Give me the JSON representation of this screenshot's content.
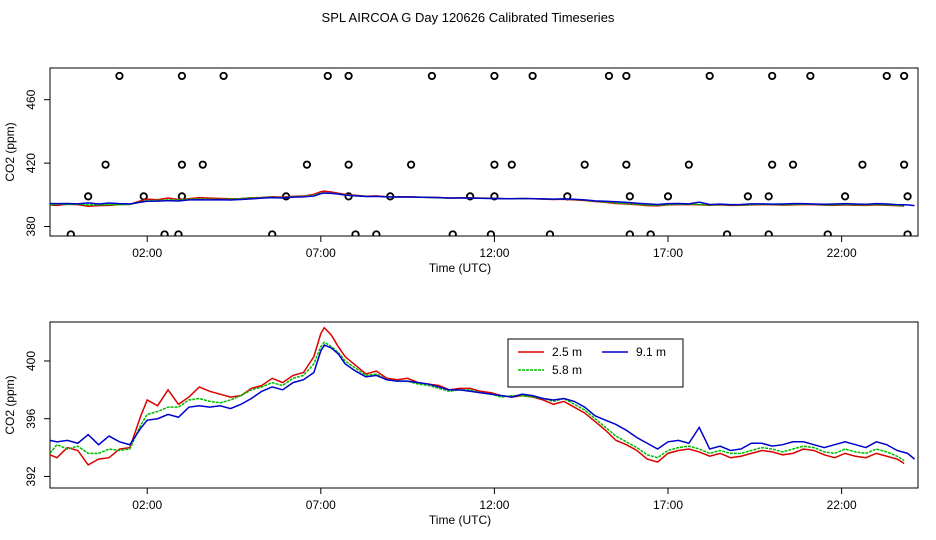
{
  "title": "SPL AIRCOA G  Day 120626  Calibrated Timeseries",
  "chart_data": [
    {
      "type": "scatter+line",
      "xlabel": "Time (UTC)",
      "ylabel": "CO2 (ppm)",
      "xlim": [
        -0.8,
        24.2
      ],
      "ylim": [
        374,
        480
      ],
      "x_ticks": [
        2,
        7,
        12,
        17,
        22
      ],
      "x_tick_labels": [
        "02:00",
        "07:00",
        "12:00",
        "17:00",
        "22:00"
      ],
      "y_ticks": [
        380,
        420,
        460
      ],
      "y_tick_labels": [
        "380",
        "420",
        "460"
      ],
      "calibration_points": [
        {
          "x": 1.2,
          "y": 475
        },
        {
          "x": 3.0,
          "y": 475
        },
        {
          "x": 4.2,
          "y": 475
        },
        {
          "x": 7.2,
          "y": 475
        },
        {
          "x": 7.8,
          "y": 475
        },
        {
          "x": 10.2,
          "y": 475
        },
        {
          "x": 12.0,
          "y": 475
        },
        {
          "x": 13.1,
          "y": 475
        },
        {
          "x": 15.3,
          "y": 475
        },
        {
          "x": 15.8,
          "y": 475
        },
        {
          "x": 18.2,
          "y": 475
        },
        {
          "x": 20.0,
          "y": 475
        },
        {
          "x": 21.1,
          "y": 475
        },
        {
          "x": 23.3,
          "y": 475
        },
        {
          "x": 23.8,
          "y": 475
        },
        {
          "x": 0.8,
          "y": 419
        },
        {
          "x": 3.0,
          "y": 419
        },
        {
          "x": 3.6,
          "y": 419
        },
        {
          "x": 6.6,
          "y": 419
        },
        {
          "x": 7.8,
          "y": 419
        },
        {
          "x": 9.6,
          "y": 419
        },
        {
          "x": 12.0,
          "y": 419
        },
        {
          "x": 12.5,
          "y": 419
        },
        {
          "x": 14.6,
          "y": 419
        },
        {
          "x": 15.8,
          "y": 419
        },
        {
          "x": 17.6,
          "y": 419
        },
        {
          "x": 20.0,
          "y": 419
        },
        {
          "x": 20.6,
          "y": 419
        },
        {
          "x": 22.6,
          "y": 419
        },
        {
          "x": 23.8,
          "y": 419
        },
        {
          "x": 0.3,
          "y": 399
        },
        {
          "x": 1.9,
          "y": 399
        },
        {
          "x": 3.0,
          "y": 399
        },
        {
          "x": 6.0,
          "y": 399
        },
        {
          "x": 7.8,
          "y": 399
        },
        {
          "x": 9.0,
          "y": 399
        },
        {
          "x": 11.3,
          "y": 399
        },
        {
          "x": 12.0,
          "y": 399
        },
        {
          "x": 14.1,
          "y": 399
        },
        {
          "x": 15.9,
          "y": 399
        },
        {
          "x": 17.0,
          "y": 399
        },
        {
          "x": 19.3,
          "y": 399
        },
        {
          "x": 19.9,
          "y": 399
        },
        {
          "x": 22.1,
          "y": 399
        },
        {
          "x": 23.9,
          "y": 399
        },
        {
          "x": -0.2,
          "y": 375
        },
        {
          "x": 2.5,
          "y": 375
        },
        {
          "x": 2.9,
          "y": 375
        },
        {
          "x": 5.6,
          "y": 375
        },
        {
          "x": 8.0,
          "y": 375
        },
        {
          "x": 8.6,
          "y": 375
        },
        {
          "x": 10.8,
          "y": 375
        },
        {
          "x": 11.9,
          "y": 375
        },
        {
          "x": 13.6,
          "y": 375
        },
        {
          "x": 15.9,
          "y": 375
        },
        {
          "x": 16.5,
          "y": 375
        },
        {
          "x": 18.7,
          "y": 375
        },
        {
          "x": 19.9,
          "y": 375
        },
        {
          "x": 21.6,
          "y": 375
        },
        {
          "x": 23.9,
          "y": 375
        }
      ],
      "series": [
        {
          "name": "2.5 m",
          "color": "#dd0000",
          "level_offset": 0.0
        },
        {
          "name": "5.8 m",
          "color": "#00bb00",
          "level_offset": 0.0
        },
        {
          "name": "9.1 m",
          "color": "#0000cc",
          "level_offset": 0.0
        }
      ],
      "grid": false
    },
    {
      "type": "line",
      "xlabel": "Time (UTC)",
      "ylabel": "CO2 (ppm)",
      "xlim": [
        -0.8,
        24.2
      ],
      "ylim": [
        391.2,
        402.7
      ],
      "x_ticks": [
        2,
        7,
        12,
        17,
        22
      ],
      "x_tick_labels": [
        "02:00",
        "07:00",
        "12:00",
        "17:00",
        "22:00"
      ],
      "y_ticks": [
        392,
        396,
        400
      ],
      "y_tick_labels": [
        "392",
        "396",
        "400"
      ],
      "legend": "top-center",
      "grid": false,
      "series": [
        {
          "name": "2.5 m",
          "color": "#dd0000",
          "x": [
            -0.8,
            -0.6,
            -0.3,
            0,
            0.3,
            0.6,
            0.9,
            1.2,
            1.5,
            1.8,
            2.0,
            2.3,
            2.6,
            2.9,
            3.2,
            3.5,
            3.8,
            4.1,
            4.4,
            4.7,
            5.0,
            5.3,
            5.6,
            5.9,
            6.2,
            6.5,
            6.8,
            7.0,
            7.1,
            7.3,
            7.5,
            7.7,
            8.0,
            8.3,
            8.6,
            8.9,
            9.2,
            9.5,
            9.8,
            10.1,
            10.4,
            10.7,
            11.0,
            11.3,
            11.6,
            11.9,
            12.2,
            12.5,
            12.8,
            13.1,
            13.4,
            13.7,
            14.0,
            14.3,
            14.6,
            14.9,
            15.2,
            15.5,
            15.8,
            16.1,
            16.4,
            16.7,
            17.0,
            17.3,
            17.6,
            17.9,
            18.2,
            18.5,
            18.8,
            19.1,
            19.4,
            19.7,
            20.0,
            20.3,
            20.6,
            20.9,
            21.2,
            21.5,
            21.8,
            22.1,
            22.4,
            22.7,
            23.0,
            23.3,
            23.6,
            23.8
          ],
          "y": [
            393.5,
            393.3,
            394.0,
            393.8,
            392.8,
            393.2,
            393.3,
            393.9,
            394.0,
            396.1,
            397.3,
            396.9,
            398.0,
            397.0,
            397.5,
            398.2,
            397.9,
            397.7,
            397.5,
            397.6,
            398.1,
            398.3,
            398.8,
            398.5,
            399.0,
            399.2,
            400.3,
            401.9,
            402.3,
            401.8,
            401.0,
            400.3,
            399.7,
            399.1,
            399.3,
            398.8,
            398.7,
            398.8,
            398.5,
            398.4,
            398.3,
            398.0,
            398.1,
            398.1,
            397.9,
            397.8,
            397.6,
            397.5,
            397.6,
            397.5,
            397.3,
            397.0,
            397.2,
            396.8,
            396.4,
            395.8,
            395.2,
            394.5,
            394.2,
            393.8,
            393.2,
            393.0,
            393.6,
            393.8,
            393.9,
            393.7,
            393.4,
            393.6,
            393.3,
            393.4,
            393.6,
            393.8,
            393.7,
            393.5,
            393.6,
            393.9,
            393.8,
            393.5,
            393.3,
            393.6,
            393.4,
            393.3,
            393.6,
            393.4,
            393.2,
            392.9
          ]
        },
        {
          "name": "5.8 m",
          "color": "#00bb00",
          "x": [
            -0.8,
            -0.6,
            -0.3,
            0,
            0.3,
            0.6,
            0.9,
            1.2,
            1.5,
            1.8,
            2.0,
            2.3,
            2.6,
            2.9,
            3.2,
            3.5,
            3.8,
            4.1,
            4.4,
            4.7,
            5.0,
            5.3,
            5.6,
            5.9,
            6.2,
            6.5,
            6.8,
            7.0,
            7.1,
            7.3,
            7.5,
            7.7,
            8.0,
            8.3,
            8.6,
            8.9,
            9.2,
            9.5,
            9.8,
            10.1,
            10.4,
            10.7,
            11.0,
            11.3,
            11.6,
            11.9,
            12.2,
            12.5,
            12.8,
            13.1,
            13.4,
            13.7,
            14.0,
            14.3,
            14.6,
            14.9,
            15.2,
            15.5,
            15.8,
            16.1,
            16.4,
            16.7,
            17.0,
            17.3,
            17.6,
            17.9,
            18.2,
            18.5,
            18.8,
            19.1,
            19.4,
            19.7,
            20.0,
            20.3,
            20.6,
            20.9,
            21.2,
            21.5,
            21.8,
            22.1,
            22.4,
            22.7,
            23.0,
            23.3,
            23.6,
            23.8
          ],
          "y": [
            393.6,
            394.2,
            393.9,
            394.1,
            393.6,
            393.6,
            393.9,
            393.8,
            393.9,
            395.5,
            396.3,
            396.5,
            396.8,
            396.8,
            397.3,
            397.4,
            397.2,
            397.1,
            397.3,
            397.6,
            398.0,
            398.2,
            398.5,
            398.3,
            398.8,
            399.0,
            399.8,
            401.0,
            401.3,
            401.0,
            400.6,
            400.0,
            399.5,
            399.0,
            399.1,
            398.7,
            398.6,
            398.6,
            398.4,
            398.3,
            398.1,
            397.9,
            398.0,
            398.0,
            397.8,
            397.7,
            397.5,
            397.6,
            397.6,
            397.5,
            397.4,
            397.2,
            397.4,
            397.0,
            396.6,
            396.0,
            395.4,
            394.8,
            394.4,
            394.0,
            393.5,
            393.3,
            393.8,
            394.0,
            394.1,
            393.9,
            393.6,
            393.8,
            393.6,
            393.6,
            393.8,
            394.0,
            393.9,
            393.7,
            393.9,
            394.1,
            394.0,
            393.7,
            393.6,
            393.9,
            393.7,
            393.6,
            393.9,
            393.7,
            393.4,
            393.1
          ]
        },
        {
          "name": "9.1 m",
          "color": "#0000cc",
          "x": [
            -0.8,
            -0.6,
            -0.3,
            0,
            0.3,
            0.6,
            0.9,
            1.2,
            1.5,
            1.8,
            2.0,
            2.3,
            2.6,
            2.9,
            3.2,
            3.5,
            3.8,
            4.1,
            4.4,
            4.7,
            5.0,
            5.3,
            5.6,
            5.9,
            6.2,
            6.5,
            6.8,
            7.0,
            7.1,
            7.3,
            7.5,
            7.7,
            8.0,
            8.3,
            8.6,
            8.9,
            9.2,
            9.5,
            9.8,
            10.1,
            10.4,
            10.7,
            11.0,
            11.3,
            11.6,
            11.9,
            12.2,
            12.5,
            12.8,
            13.1,
            13.4,
            13.7,
            14.0,
            14.3,
            14.6,
            14.9,
            15.2,
            15.5,
            15.8,
            16.1,
            16.4,
            16.7,
            17.0,
            17.3,
            17.6,
            17.9,
            18.2,
            18.5,
            18.8,
            19.1,
            19.4,
            19.7,
            20.0,
            20.3,
            20.6,
            20.9,
            21.2,
            21.5,
            21.8,
            22.1,
            22.4,
            22.7,
            23.0,
            23.3,
            23.6,
            23.9,
            24.1
          ],
          "y": [
            394.5,
            394.4,
            394.5,
            394.3,
            394.9,
            394.2,
            394.8,
            394.4,
            394.2,
            395.3,
            395.9,
            396.0,
            396.3,
            396.1,
            396.8,
            396.9,
            396.8,
            396.9,
            396.7,
            397.0,
            397.4,
            397.9,
            398.2,
            398.0,
            398.5,
            398.7,
            399.2,
            400.7,
            401.1,
            400.9,
            400.5,
            399.8,
            399.3,
            398.9,
            399.0,
            398.7,
            398.6,
            398.6,
            398.5,
            398.4,
            398.2,
            398.0,
            398.0,
            397.9,
            397.8,
            397.7,
            397.6,
            397.5,
            397.7,
            397.6,
            397.4,
            397.3,
            397.4,
            397.2,
            396.8,
            396.2,
            395.9,
            395.6,
            395.2,
            394.7,
            394.3,
            393.9,
            394.4,
            394.5,
            394.3,
            395.4,
            393.9,
            394.1,
            393.8,
            393.9,
            394.3,
            394.3,
            394.1,
            394.2,
            394.4,
            394.4,
            394.2,
            394.0,
            394.2,
            394.4,
            394.2,
            394.0,
            394.4,
            394.2,
            393.8,
            393.6,
            393.2
          ]
        }
      ]
    }
  ]
}
